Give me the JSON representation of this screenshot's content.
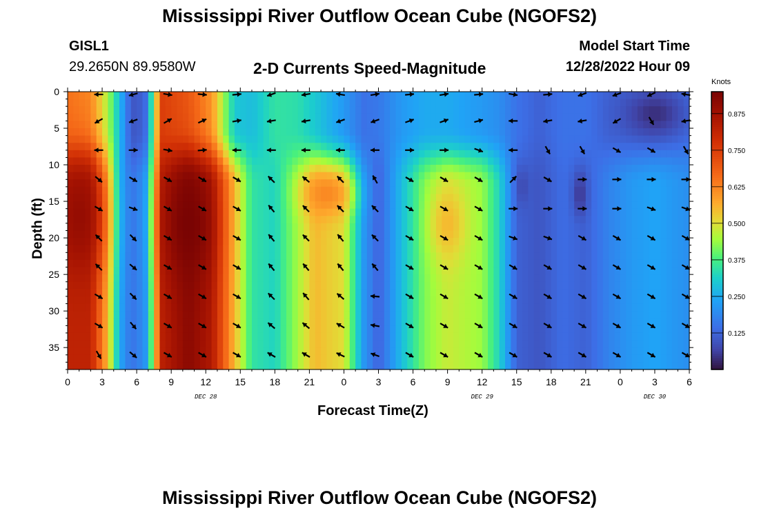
{
  "page": {
    "title": "Mississippi River Outflow Ocean Cube (NGOFS2)",
    "bottom_title": "Mississippi River Outflow Ocean Cube (NGOFS2)"
  },
  "station": {
    "id": "GISL1",
    "coords": "29.2650N  89.9580W"
  },
  "model": {
    "label": "Model Start Time",
    "start": "12/28/2022 Hour 09"
  },
  "chart_data": {
    "type": "heatmap",
    "title": "2-D Currents Speed-Magnitude",
    "xlabel": "Forecast Time(Z)",
    "ylabel": "Depth (ft)",
    "xlim": [
      0,
      54
    ],
    "ylim": [
      0,
      38
    ],
    "y_inverted": true,
    "x_ticks": [
      0,
      3,
      6,
      9,
      12,
      15,
      18,
      21,
      24,
      27,
      30,
      33,
      36,
      39,
      42,
      45,
      48,
      51,
      54
    ],
    "x_tick_labels": [
      "0",
      "3",
      "6",
      "9",
      "12",
      "15",
      "18",
      "21",
      "0",
      "3",
      "6",
      "9",
      "12",
      "15",
      "18",
      "21",
      "0",
      "3",
      "6"
    ],
    "y_ticks": [
      0,
      5,
      10,
      15,
      20,
      25,
      30,
      35
    ],
    "y_tick_labels": [
      "0",
      "5",
      "10",
      "15",
      "20",
      "25",
      "30",
      "35"
    ],
    "day_labels": [
      {
        "x": 12,
        "text": "DEC 28"
      },
      {
        "x": 36,
        "text": "DEC 29"
      },
      {
        "x": 51,
        "text": "DEC 30"
      }
    ],
    "colorbar": {
      "unit": "Knots",
      "min": 0,
      "max": 0.95,
      "ticks": [
        0.125,
        0.25,
        0.375,
        0.5,
        0.625,
        0.75,
        0.875
      ],
      "tick_labels": [
        "0.125",
        "0.250",
        "0.375",
        "0.500",
        "0.625",
        "0.750",
        "0.875"
      ]
    },
    "time_profile": [
      {
        "t": 0,
        "top": 0.65,
        "bottom": 0.82
      },
      {
        "t": 2,
        "top": 0.62,
        "bottom": 0.82
      },
      {
        "t": 3.5,
        "top": 0.45,
        "bottom": 0.55
      },
      {
        "t": 4.5,
        "top": 0.28,
        "bottom": 0.25
      },
      {
        "t": 5.5,
        "top": 0.1,
        "bottom": 0.15
      },
      {
        "t": 6.7,
        "top": 0.12,
        "bottom": 0.2
      },
      {
        "t": 7.3,
        "top": 0.35,
        "bottom": 0.4
      },
      {
        "t": 8.2,
        "top": 0.75,
        "bottom": 0.83
      },
      {
        "t": 10.5,
        "top": 0.7,
        "bottom": 0.92
      },
      {
        "t": 12.5,
        "top": 0.6,
        "bottom": 0.85
      },
      {
        "t": 14.5,
        "top": 0.3,
        "bottom": 0.55
      },
      {
        "t": 16,
        "top": 0.28,
        "bottom": 0.35
      },
      {
        "t": 18,
        "top": 0.35,
        "bottom": 0.32
      },
      {
        "t": 20,
        "top": 0.34,
        "bottom": 0.45
      },
      {
        "t": 21.5,
        "top": 0.3,
        "bottom": 0.55
      },
      {
        "t": 24,
        "top": 0.22,
        "bottom": 0.5
      },
      {
        "t": 25.7,
        "top": 0.15,
        "bottom": 0.22
      },
      {
        "t": 27,
        "top": 0.16,
        "bottom": 0.12
      },
      {
        "t": 29,
        "top": 0.22,
        "bottom": 0.28
      },
      {
        "t": 31,
        "top": 0.25,
        "bottom": 0.42
      },
      {
        "t": 33,
        "top": 0.25,
        "bottom": 0.48
      },
      {
        "t": 36,
        "top": 0.22,
        "bottom": 0.44
      },
      {
        "t": 37.5,
        "top": 0.2,
        "bottom": 0.32
      },
      {
        "t": 39,
        "top": 0.15,
        "bottom": 0.12
      },
      {
        "t": 41,
        "top": 0.12,
        "bottom": 0.1
      },
      {
        "t": 43,
        "top": 0.15,
        "bottom": 0.14
      },
      {
        "t": 45,
        "top": 0.15,
        "bottom": 0.12
      },
      {
        "t": 47,
        "top": 0.12,
        "bottom": 0.18
      },
      {
        "t": 49,
        "top": 0.12,
        "bottom": 0.22
      },
      {
        "t": 51,
        "top": 0.12,
        "bottom": 0.24
      },
      {
        "t": 54,
        "top": 0.14,
        "bottom": 0.2
      }
    ],
    "hotspots": [
      {
        "t": 51,
        "d": 3,
        "rt": 2.6,
        "rd": 3.2,
        "value": 0.04
      },
      {
        "t": 44.5,
        "d": 14,
        "rt": 0.6,
        "rd": 3,
        "value": 0.05
      },
      {
        "t": 39.5,
        "d": 13,
        "rt": 0.5,
        "rd": 2.5,
        "value": 0.08
      },
      {
        "t": 1,
        "d": 17,
        "rt": 2,
        "rd": 8,
        "value": 0.9
      },
      {
        "t": 10.5,
        "d": 18,
        "rt": 2,
        "rd": 8,
        "value": 0.95
      },
      {
        "t": 22.5,
        "d": 14,
        "rt": 2,
        "rd": 3,
        "value": 0.62
      },
      {
        "t": 33,
        "d": 18,
        "rt": 1.5,
        "rd": 5,
        "value": 0.55
      }
    ],
    "vector_depths": [
      0,
      4,
      8,
      12,
      16,
      20,
      24,
      28,
      32,
      36
    ],
    "vector_times": [
      3,
      6,
      9,
      12,
      15,
      18,
      21,
      24,
      27,
      30,
      33,
      36,
      39,
      42,
      45,
      48,
      51,
      54
    ],
    "vector_dirs_deg": [
      [
        180,
        195,
        350,
        355,
        5,
        200,
        190,
        170,
        10,
        5,
        10,
        5,
        350,
        5,
        200,
        200,
        205,
        170
      ],
      [
        210,
        200,
        30,
        25,
        10,
        190,
        190,
        200,
        200,
        20,
        20,
        15,
        180,
        190,
        190,
        210,
        300,
        190
      ],
      [
        180,
        0,
        350,
        5,
        180,
        180,
        180,
        180,
        180,
        0,
        0,
        340,
        180,
        300,
        300,
        330,
        330,
        300
      ],
      [
        320,
        330,
        330,
        330,
        330,
        135,
        140,
        135,
        120,
        330,
        330,
        330,
        45,
        330,
        0,
        0,
        0,
        0
      ],
      [
        330,
        340,
        330,
        330,
        330,
        130,
        135,
        135,
        135,
        330,
        330,
        330,
        0,
        0,
        0,
        0,
        340,
        340
      ],
      [
        135,
        315,
        330,
        330,
        330,
        130,
        135,
        130,
        135,
        330,
        330,
        330,
        340,
        340,
        330,
        330,
        330,
        330
      ],
      [
        135,
        320,
        330,
        330,
        330,
        130,
        130,
        130,
        130,
        330,
        330,
        330,
        330,
        330,
        330,
        330,
        330,
        330
      ],
      [
        330,
        315,
        330,
        330,
        330,
        135,
        130,
        140,
        175,
        330,
        330,
        330,
        330,
        330,
        330,
        330,
        330,
        330
      ],
      [
        330,
        310,
        330,
        330,
        330,
        140,
        140,
        150,
        170,
        330,
        330,
        330,
        330,
        330,
        330,
        330,
        330,
        330
      ],
      [
        300,
        320,
        330,
        330,
        330,
        150,
        150,
        155,
        160,
        330,
        330,
        330,
        330,
        330,
        330,
        330,
        330,
        330
      ]
    ]
  }
}
